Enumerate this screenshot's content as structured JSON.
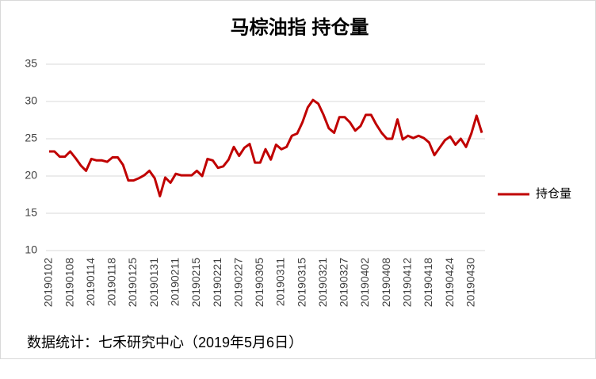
{
  "chart_data": {
    "type": "line",
    "title": "马棕油指 持仓量",
    "note": "数据统计：七禾研究中心（2019年5月6日）",
    "categories": [
      "20190102",
      null,
      null,
      null,
      "20190108",
      null,
      null,
      null,
      "20190114",
      null,
      null,
      null,
      "20190118",
      null,
      null,
      null,
      "20190125",
      null,
      null,
      null,
      "20190131",
      null,
      null,
      null,
      "20190211",
      null,
      null,
      null,
      "20190215",
      null,
      null,
      null,
      "20190221",
      null,
      null,
      null,
      "20190227",
      null,
      null,
      null,
      "20190305",
      null,
      null,
      null,
      "20190311",
      null,
      null,
      null,
      "20190315",
      null,
      null,
      null,
      "20190321",
      null,
      null,
      null,
      "20190327",
      null,
      null,
      null,
      "20190402",
      null,
      null,
      null,
      "20190408",
      null,
      null,
      null,
      "20190412",
      null,
      null,
      null,
      "20190418",
      null,
      null,
      null,
      "20190424",
      null,
      null,
      null,
      "20190430",
      null,
      null
    ],
    "series": [
      {
        "name": "持仓量",
        "color": "#c00000",
        "values": [
          23.3,
          23.3,
          22.6,
          22.6,
          23.3,
          22.4,
          21.4,
          20.7,
          22.3,
          22.1,
          22.1,
          21.9,
          22.5,
          22.5,
          21.5,
          19.4,
          19.4,
          19.7,
          20.1,
          20.7,
          19.7,
          17.3,
          19.8,
          19.1,
          20.3,
          20.1,
          20.1,
          20.1,
          20.7,
          20.0,
          22.3,
          22.1,
          21.1,
          21.3,
          22.2,
          23.9,
          22.7,
          23.8,
          24.3,
          21.8,
          21.8,
          23.6,
          22.2,
          24.2,
          23.6,
          23.9,
          25.4,
          25.7,
          27.2,
          29.2,
          30.2,
          29.7,
          28.2,
          26.4,
          25.8,
          27.9,
          27.9,
          27.2,
          26.1,
          26.7,
          28.2,
          28.2,
          26.9,
          25.8,
          25.0,
          25.0,
          27.6,
          24.9,
          25.4,
          25.1,
          25.4,
          25.1,
          24.5,
          22.8,
          23.8,
          24.8,
          25.3,
          24.2,
          25.0,
          23.9,
          25.7,
          28.1,
          25.8
        ]
      }
    ],
    "ylim": [
      10,
      35
    ],
    "yticks": [
      10,
      15,
      20,
      25,
      30,
      35
    ],
    "grid": true,
    "legend": "right"
  }
}
